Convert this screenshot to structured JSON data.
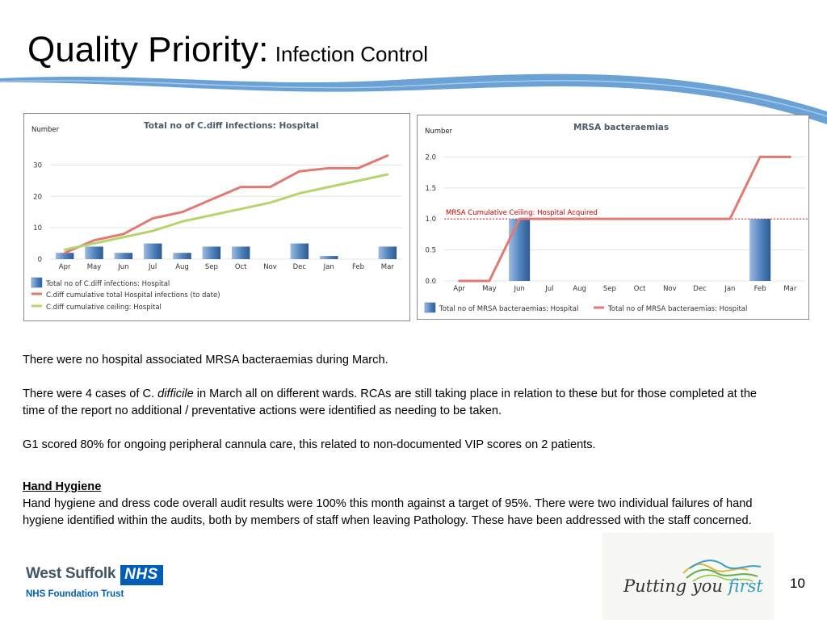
{
  "title": {
    "main": "Quality Priority:",
    "sub": "Infection Control"
  },
  "colors": {
    "bar": "#4f81bd",
    "actual": "#e07a72",
    "ceiling": "#b5d46c",
    "ref_line": "#cc0000",
    "nhs_blue": "#005EB8",
    "swoosh": "#6aa2d6"
  },
  "chart_data": [
    {
      "type": "bar+line",
      "title": "Total no of C.diff infections: Hospital",
      "ylabel": "Number",
      "ylim": [
        0,
        35
      ],
      "yticks": [
        0,
        10,
        20,
        30
      ],
      "categories": [
        "Apr",
        "May",
        "Jun",
        "Jul",
        "Aug",
        "Sep",
        "Oct",
        "Nov",
        "Dec",
        "Jan",
        "Feb",
        "Mar"
      ],
      "series": [
        {
          "name": "Total no of C.diff infections: Hospital",
          "kind": "bar",
          "values": [
            2,
            4,
            2,
            5,
            2,
            4,
            4,
            0,
            5,
            1,
            0,
            4
          ]
        },
        {
          "name": "C.diff cumulative total Hospital infections (to date)",
          "kind": "line",
          "values": [
            2,
            6,
            8,
            13,
            15,
            19,
            23,
            23,
            28,
            29,
            29,
            33
          ]
        },
        {
          "name": "C.diff cumulative ceiling: Hospital",
          "kind": "line",
          "values": [
            3,
            5,
            7,
            9,
            12,
            14,
            16,
            18,
            21,
            23,
            25,
            27
          ]
        }
      ]
    },
    {
      "type": "bar+line",
      "title": "MRSA bacteraemias",
      "ylabel": "Number",
      "ylim": [
        0,
        2.2
      ],
      "yticks": [
        "0.0",
        "0.5",
        "1.0",
        "1.5",
        "2.0"
      ],
      "categories": [
        "Apr",
        "May",
        "Jun",
        "Jul",
        "Aug",
        "Sep",
        "Oct",
        "Nov",
        "Dec",
        "Jan",
        "Feb",
        "Mar"
      ],
      "annotation": "MRSA Cumulative Ceiling: Hospital Acquired",
      "reference_line": 1.0,
      "series": [
        {
          "name": "Total no of MRSA bacteraemias: Hospital",
          "kind": "bar",
          "values": [
            0,
            0,
            1,
            0,
            0,
            0,
            0,
            0,
            0,
            0,
            1,
            0
          ]
        },
        {
          "name": "Total no of MRSA bacteraemias: Hospital",
          "kind": "line",
          "values": [
            0,
            0,
            1,
            1,
            1,
            1,
            1,
            1,
            1,
            1,
            2,
            2
          ]
        }
      ]
    }
  ],
  "body": {
    "p1": "There were no hospital associated MRSA bacteraemias during March.",
    "p2_a": "There were 4 cases of C. ",
    "p2_i": "difficile",
    "p2_b": "  in March all on different wards. RCAs are still taking place in relation to these but  for those completed at the time of the report no additional / preventative actions  were identified as needing to be taken.",
    "p3": "G1 scored 80% for ongoing peripheral cannula care, this related to non-documented VIP scores on 2 patients.",
    "hh_heading": "Hand Hygiene",
    "hh_text": "Hand hygiene and dress code overall audit results were 100% this month against a target of 95%.  There were two individual failures of hand hygiene identified within the audits, both by members of staff when leaving Pathology.  These have been addressed with the staff concerned."
  },
  "footer": {
    "org_name": "West Suffolk",
    "nhs": "NHS",
    "trust": "NHS Foundation Trust",
    "slogan_a": "Putting you ",
    "slogan_b": "first",
    "page_number": "10"
  }
}
